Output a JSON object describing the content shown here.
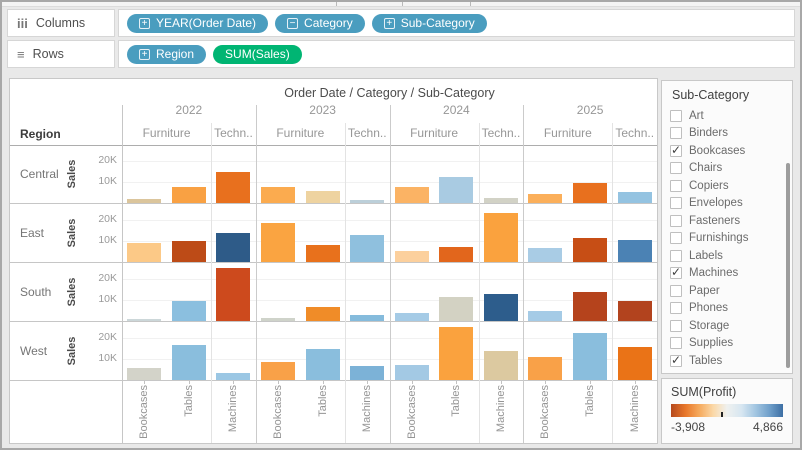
{
  "shelves": {
    "columns": {
      "label": "Columns",
      "pills": [
        {
          "label": "YEAR(Order Date)",
          "prefix_icon": "plus",
          "kind": "dimension"
        },
        {
          "label": "Category",
          "prefix_icon": "minus",
          "kind": "dimension"
        },
        {
          "label": "Sub-Category",
          "prefix_icon": "plus",
          "kind": "dimension"
        }
      ]
    },
    "rows": {
      "label": "Rows",
      "pills": [
        {
          "label": "Region",
          "prefix_icon": "plus",
          "kind": "dimension"
        },
        {
          "label": "SUM(Sales)",
          "prefix_icon": "none",
          "kind": "measure"
        }
      ]
    }
  },
  "colors": {
    "dimension_pill": "#4a9dbf",
    "measure_pill": "#00b573"
  },
  "chart_data": {
    "type": "bar",
    "title": "Order Date / Category / Sub-Category",
    "row_dimension_label": "Region",
    "axis_label": "Sales",
    "y_tick_labels": [
      "20K",
      "10K"
    ],
    "y_max": 28000,
    "years": [
      "2022",
      "2023",
      "2024",
      "2025"
    ],
    "category_labels": [
      "Furniture",
      "Techn.."
    ],
    "subcategory_labels": [
      "Bookcases",
      "Tables",
      "Machines"
    ],
    "series": [
      {
        "region": "Central",
        "values": [
          2000,
          8000,
          15000,
          8000,
          6000,
          1500,
          8000,
          13000,
          2300,
          4500,
          10000,
          5500
        ],
        "colors": [
          "#dbc59c",
          "#f9a143",
          "#e8701e",
          "#fbab4f",
          "#eed3a0",
          "#bccfd9",
          "#fbb364",
          "#a9cbe2",
          "#d2d2c6",
          "#fbaf5a",
          "#e8701e",
          "#94c3e1"
        ]
      },
      {
        "region": "East",
        "values": [
          9500,
          10500,
          14000,
          19000,
          8500,
          13500,
          5500,
          7500,
          24000,
          7000,
          12000,
          11000
        ],
        "colors": [
          "#fcc987",
          "#bd4b17",
          "#2e5b88",
          "#faa441",
          "#e8711c",
          "#8fc0de",
          "#fcd09d",
          "#e2661c",
          "#faa23e",
          "#a9cce5",
          "#c74e15",
          "#4b82b4"
        ]
      },
      {
        "region": "South",
        "values": [
          1000,
          10000,
          26000,
          1500,
          7000,
          3000,
          4000,
          12000,
          13500,
          5000,
          14000,
          10000
        ],
        "colors": [
          "#ccd7d9",
          "#8bbfdf",
          "#cd4a1d",
          "#cfd3ca",
          "#f08c28",
          "#85bbdc",
          "#a5cbe6",
          "#d3d2c3",
          "#2d5d8c",
          "#a5cbe6",
          "#b5431c",
          "#b2431e"
        ]
      },
      {
        "region": "West",
        "values": [
          6000,
          17000,
          3500,
          9000,
          15000,
          7000,
          7500,
          26000,
          14000,
          11500,
          23000,
          16000
        ],
        "colors": [
          "#d3d3c9",
          "#8abedd",
          "#9bc7e4",
          "#f9a148",
          "#8abedd",
          "#7cb2d7",
          "#a3c9e4",
          "#faa23e",
          "#dcc9a0",
          "#f9a148",
          "#8abedd",
          "#ea7317"
        ]
      }
    ]
  },
  "filter_panel": {
    "title": "Sub-Category",
    "items": [
      {
        "label": "Art",
        "checked": false
      },
      {
        "label": "Binders",
        "checked": false
      },
      {
        "label": "Bookcases",
        "checked": true
      },
      {
        "label": "Chairs",
        "checked": false
      },
      {
        "label": "Copiers",
        "checked": false
      },
      {
        "label": "Envelopes",
        "checked": false
      },
      {
        "label": "Fasteners",
        "checked": false
      },
      {
        "label": "Furnishings",
        "checked": false
      },
      {
        "label": "Labels",
        "checked": false
      },
      {
        "label": "Machines",
        "checked": true
      },
      {
        "label": "Paper",
        "checked": false
      },
      {
        "label": "Phones",
        "checked": false
      },
      {
        "label": "Storage",
        "checked": false
      },
      {
        "label": "Supplies",
        "checked": false
      },
      {
        "label": "Tables",
        "checked": true
      }
    ]
  },
  "legend": {
    "title": "SUM(Profit)",
    "min_label": "-3,908",
    "max_label": "4,866",
    "gradient_colors": [
      "#b5491d",
      "#e8772a",
      "#f5a95c",
      "#fbd9a9",
      "#eff1ef",
      "#d7e6f1",
      "#a4c7e2",
      "#6f9fca",
      "#3d6fa4"
    ]
  }
}
